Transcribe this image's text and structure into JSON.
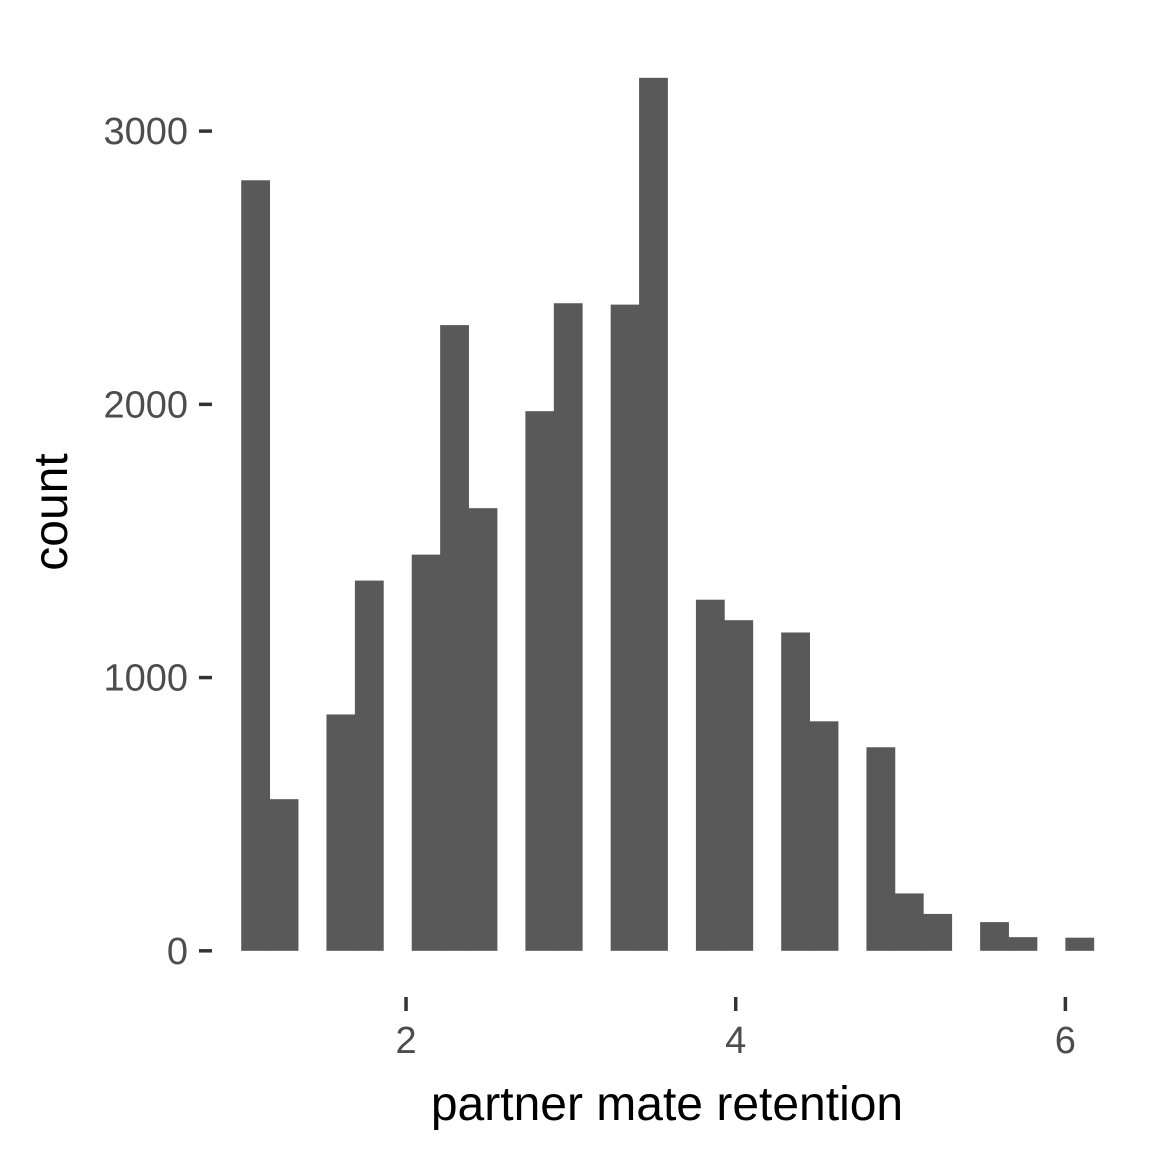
{
  "chart_data": {
    "type": "bar",
    "subtype": "histogram",
    "title": "",
    "xlabel": "partner mate retention",
    "ylabel": "count",
    "bar_color": "#595959",
    "background": "#ffffff",
    "grid": false,
    "bin_width": 0.1724,
    "bins": [
      {
        "x0": 1.0,
        "x1": 1.1724,
        "count": 2820
      },
      {
        "x0": 1.1724,
        "x1": 1.3448,
        "count": 555
      },
      {
        "x0": 1.3448,
        "x1": 1.5172,
        "count": 0
      },
      {
        "x0": 1.5172,
        "x1": 1.6897,
        "count": 865
      },
      {
        "x0": 1.6897,
        "x1": 1.8621,
        "count": 1355
      },
      {
        "x0": 1.8621,
        "x1": 2.0345,
        "count": 0
      },
      {
        "x0": 2.0345,
        "x1": 2.2069,
        "count": 1450
      },
      {
        "x0": 2.2069,
        "x1": 2.3793,
        "count": 2290
      },
      {
        "x0": 2.3793,
        "x1": 2.5517,
        "count": 1620
      },
      {
        "x0": 2.5517,
        "x1": 2.7241,
        "count": 0
      },
      {
        "x0": 2.7241,
        "x1": 2.8966,
        "count": 1975
      },
      {
        "x0": 2.8966,
        "x1": 3.069,
        "count": 2370
      },
      {
        "x0": 3.069,
        "x1": 3.2414,
        "count": 0
      },
      {
        "x0": 3.2414,
        "x1": 3.4138,
        "count": 2365
      },
      {
        "x0": 3.4138,
        "x1": 3.5862,
        "count": 3195
      },
      {
        "x0": 3.5862,
        "x1": 3.7586,
        "count": 0
      },
      {
        "x0": 3.7586,
        "x1": 3.931,
        "count": 1285
      },
      {
        "x0": 3.931,
        "x1": 4.1034,
        "count": 1210
      },
      {
        "x0": 4.1034,
        "x1": 4.2759,
        "count": 0
      },
      {
        "x0": 4.2759,
        "x1": 4.4483,
        "count": 1165
      },
      {
        "x0": 4.4483,
        "x1": 4.6207,
        "count": 840
      },
      {
        "x0": 4.6207,
        "x1": 4.7931,
        "count": 0
      },
      {
        "x0": 4.7931,
        "x1": 4.9655,
        "count": 745
      },
      {
        "x0": 4.9655,
        "x1": 5.1379,
        "count": 210
      },
      {
        "x0": 5.1379,
        "x1": 5.3103,
        "count": 135
      },
      {
        "x0": 5.3103,
        "x1": 5.4828,
        "count": 0
      },
      {
        "x0": 5.4828,
        "x1": 5.6552,
        "count": 105
      },
      {
        "x0": 5.6552,
        "x1": 5.8276,
        "count": 50
      },
      {
        "x0": 5.8276,
        "x1": 6.0,
        "count": 0
      },
      {
        "x0": 6.0,
        "x1": 6.1724,
        "count": 48
      }
    ],
    "xlim": [
      0.9138,
      6.2586
    ],
    "ylim": [
      -180,
      3370
    ],
    "x_ticks": [
      {
        "value": 2,
        "label": "2"
      },
      {
        "value": 4,
        "label": "4"
      },
      {
        "value": 6,
        "label": "6"
      }
    ],
    "y_ticks": [
      {
        "value": 0,
        "label": "0"
      },
      {
        "value": 1000,
        "label": "1000"
      },
      {
        "value": 2000,
        "label": "2000"
      },
      {
        "value": 3000,
        "label": "3000"
      }
    ]
  }
}
